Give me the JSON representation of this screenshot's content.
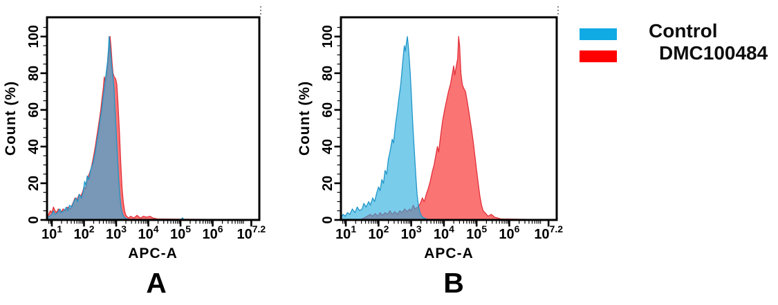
{
  "figure": {
    "ylabel": "Count (%)",
    "xlabel": "APC-A"
  },
  "legend": {
    "items": [
      {
        "label": "Control",
        "color": "#10aae4"
      },
      {
        "label": "DMC100484",
        "color": "#fe0000"
      }
    ]
  },
  "chart_data": [
    {
      "type": "area",
      "panel_label": "A",
      "title": "",
      "xlabel": "APC-A",
      "ylabel": "Count (%)",
      "x_scale": "log10",
      "grid": false,
      "legend_position": "outside-right",
      "x_domain_log": [
        0.85,
        7.45
      ],
      "y_domain": [
        0,
        110.5
      ],
      "x_ticks": [
        {
          "log": 1,
          "label": "10^1"
        },
        {
          "log": 2,
          "label": "10^2"
        },
        {
          "log": 3,
          "label": "10^3"
        },
        {
          "log": 4,
          "label": "10^4"
        },
        {
          "log": 5,
          "label": "10^5"
        },
        {
          "log": 6,
          "label": "10^6"
        },
        {
          "log": 7.2,
          "label": "10^7.2"
        }
      ],
      "y_ticks": [
        0,
        20,
        40,
        60,
        80,
        100
      ],
      "y_minor_step": 5,
      "series": [
        {
          "name": "DMC100484",
          "line_color": "#e0303a",
          "fill_color": "rgba(250,62,62,0.72)",
          "points": [
            [
              0.85,
              1.5
            ],
            [
              0.9,
              3
            ],
            [
              0.95,
              5
            ],
            [
              1.0,
              4
            ],
            [
              1.05,
              7
            ],
            [
              1.1,
              5
            ],
            [
              1.15,
              4
            ],
            [
              1.2,
              6
            ],
            [
              1.28,
              4
            ],
            [
              1.35,
              6
            ],
            [
              1.42,
              5
            ],
            [
              1.5,
              7
            ],
            [
              1.58,
              6
            ],
            [
              1.65,
              9
            ],
            [
              1.72,
              12
            ],
            [
              1.78,
              11
            ],
            [
              1.85,
              14
            ],
            [
              1.9,
              13
            ],
            [
              1.95,
              15
            ],
            [
              2.0,
              18
            ],
            [
              2.05,
              17
            ],
            [
              2.1,
              22
            ],
            [
              2.16,
              25
            ],
            [
              2.22,
              28
            ],
            [
              2.28,
              33
            ],
            [
              2.35,
              40
            ],
            [
              2.42,
              48
            ],
            [
              2.48,
              55
            ],
            [
              2.52,
              60
            ],
            [
              2.56,
              66
            ],
            [
              2.6,
              72
            ],
            [
              2.63,
              78
            ],
            [
              2.66,
              75
            ],
            [
              2.7,
              80
            ],
            [
              2.74,
              85
            ],
            [
              2.78,
              92
            ],
            [
              2.81,
              100
            ],
            [
              2.84,
              94
            ],
            [
              2.87,
              86
            ],
            [
              2.9,
              80
            ],
            [
              2.94,
              78
            ],
            [
              2.98,
              77
            ],
            [
              3.02,
              74
            ],
            [
              3.06,
              62
            ],
            [
              3.1,
              48
            ],
            [
              3.14,
              32
            ],
            [
              3.18,
              18
            ],
            [
              3.22,
              10
            ],
            [
              3.26,
              5
            ],
            [
              3.3,
              2.5
            ],
            [
              3.38,
              1
            ],
            [
              3.45,
              2
            ],
            [
              3.55,
              1
            ],
            [
              3.65,
              2.5
            ],
            [
              3.75,
              1
            ],
            [
              3.85,
              2
            ],
            [
              3.95,
              1.5
            ],
            [
              4.05,
              2
            ],
            [
              4.15,
              1
            ],
            [
              4.3,
              0.5
            ],
            [
              7.45,
              0.2
            ]
          ]
        },
        {
          "name": "Control",
          "line_color": "#1f96c8",
          "fill_color": "rgba(40,172,222,0.62)",
          "points": [
            [
              0.85,
              1
            ],
            [
              0.92,
              2
            ],
            [
              1.0,
              3
            ],
            [
              1.05,
              5
            ],
            [
              1.1,
              3
            ],
            [
              1.18,
              4
            ],
            [
              1.25,
              6
            ],
            [
              1.3,
              4
            ],
            [
              1.38,
              5
            ],
            [
              1.45,
              7
            ],
            [
              1.5,
              5
            ],
            [
              1.55,
              8
            ],
            [
              1.62,
              7
            ],
            [
              1.68,
              10
            ],
            [
              1.75,
              12
            ],
            [
              1.8,
              10
            ],
            [
              1.85,
              14
            ],
            [
              1.92,
              12
            ],
            [
              1.98,
              16
            ],
            [
              2.02,
              21
            ],
            [
              2.06,
              19
            ],
            [
              2.1,
              24
            ],
            [
              2.15,
              22
            ],
            [
              2.2,
              27
            ],
            [
              2.28,
              31
            ],
            [
              2.34,
              36
            ],
            [
              2.4,
              43
            ],
            [
              2.45,
              48
            ],
            [
              2.5,
              55
            ],
            [
              2.55,
              60
            ],
            [
              2.58,
              65
            ],
            [
              2.62,
              70
            ],
            [
              2.66,
              76
            ],
            [
              2.7,
              82
            ],
            [
              2.73,
              86
            ],
            [
              2.76,
              93
            ],
            [
              2.78,
              100
            ],
            [
              2.8,
              97
            ],
            [
              2.83,
              90
            ],
            [
              2.86,
              84
            ],
            [
              2.9,
              78
            ],
            [
              2.93,
              72
            ],
            [
              2.96,
              62
            ],
            [
              3.0,
              48
            ],
            [
              3.04,
              34
            ],
            [
              3.08,
              22
            ],
            [
              3.12,
              12
            ],
            [
              3.16,
              6
            ],
            [
              3.2,
              3
            ],
            [
              3.25,
              1.5
            ],
            [
              3.3,
              0.8
            ],
            [
              3.4,
              0.3
            ],
            [
              5.02,
              0.2
            ],
            [
              5.06,
              1.2
            ],
            [
              5.1,
              0.2
            ],
            [
              7.45,
              0.1
            ]
          ]
        }
      ]
    },
    {
      "type": "area",
      "panel_label": "B",
      "title": "",
      "xlabel": "APC-A",
      "ylabel": "Count (%)",
      "x_scale": "log10",
      "grid": false,
      "legend_position": "outside-right",
      "x_domain_log": [
        0.85,
        7.45
      ],
      "y_domain": [
        0,
        110.5
      ],
      "x_ticks": [
        {
          "log": 1,
          "label": "10^1"
        },
        {
          "log": 2,
          "label": "10^2"
        },
        {
          "log": 3,
          "label": "10^3"
        },
        {
          "log": 4,
          "label": "10^4"
        },
        {
          "log": 5,
          "label": "10^5"
        },
        {
          "log": 6,
          "label": "10^6"
        },
        {
          "log": 7.2,
          "label": "10^7.2"
        }
      ],
      "y_ticks": [
        0,
        20,
        40,
        60,
        80,
        100
      ],
      "y_minor_step": 5,
      "series": [
        {
          "name": "DMC100484",
          "line_color": "#e0303a",
          "fill_color": "rgba(250,62,62,0.72)",
          "points": [
            [
              1.45,
              0.3
            ],
            [
              1.55,
              1
            ],
            [
              1.65,
              2
            ],
            [
              1.75,
              3
            ],
            [
              1.82,
              2
            ],
            [
              1.9,
              3.5
            ],
            [
              1.98,
              2
            ],
            [
              2.05,
              4
            ],
            [
              2.12,
              2.5
            ],
            [
              2.2,
              4
            ],
            [
              2.28,
              3
            ],
            [
              2.35,
              5
            ],
            [
              2.42,
              3
            ],
            [
              2.5,
              4.5
            ],
            [
              2.58,
              3
            ],
            [
              2.65,
              5
            ],
            [
              2.72,
              4
            ],
            [
              2.8,
              6
            ],
            [
              2.88,
              4.5
            ],
            [
              2.95,
              6
            ],
            [
              3.0,
              5
            ],
            [
              3.06,
              8
            ],
            [
              3.12,
              6
            ],
            [
              3.2,
              7
            ],
            [
              3.28,
              9
            ],
            [
              3.34,
              12
            ],
            [
              3.4,
              10
            ],
            [
              3.46,
              14
            ],
            [
              3.52,
              17
            ],
            [
              3.58,
              21
            ],
            [
              3.64,
              26
            ],
            [
              3.7,
              30
            ],
            [
              3.76,
              36
            ],
            [
              3.8,
              40
            ],
            [
              3.84,
              37
            ],
            [
              3.9,
              46
            ],
            [
              3.96,
              54
            ],
            [
              4.02,
              60
            ],
            [
              4.08,
              65
            ],
            [
              4.14,
              70
            ],
            [
              4.2,
              74
            ],
            [
              4.26,
              80
            ],
            [
              4.3,
              84
            ],
            [
              4.33,
              79
            ],
            [
              4.38,
              84
            ],
            [
              4.42,
              88
            ],
            [
              4.45,
              100
            ],
            [
              4.48,
              95
            ],
            [
              4.52,
              80
            ],
            [
              4.56,
              74
            ],
            [
              4.6,
              72
            ],
            [
              4.66,
              70
            ],
            [
              4.72,
              64
            ],
            [
              4.78,
              57
            ],
            [
              4.84,
              50
            ],
            [
              4.9,
              42
            ],
            [
              4.96,
              33
            ],
            [
              5.0,
              27
            ],
            [
              5.05,
              20
            ],
            [
              5.1,
              13
            ],
            [
              5.15,
              8
            ],
            [
              5.2,
              5
            ],
            [
              5.28,
              3.5
            ],
            [
              5.35,
              2
            ],
            [
              5.45,
              3
            ],
            [
              5.55,
              1.5
            ],
            [
              5.65,
              1
            ],
            [
              5.75,
              0.5
            ],
            [
              7.45,
              0.1
            ]
          ]
        },
        {
          "name": "Control",
          "line_color": "#1f96c8",
          "fill_color": "rgba(40,172,222,0.62)",
          "points": [
            [
              0.85,
              1.5
            ],
            [
              0.92,
              3
            ],
            [
              0.98,
              2
            ],
            [
              1.05,
              4
            ],
            [
              1.12,
              3
            ],
            [
              1.2,
              6
            ],
            [
              1.28,
              4
            ],
            [
              1.35,
              7
            ],
            [
              1.42,
              5
            ],
            [
              1.5,
              6
            ],
            [
              1.55,
              9
            ],
            [
              1.62,
              7
            ],
            [
              1.7,
              10
            ],
            [
              1.75,
              8
            ],
            [
              1.82,
              12
            ],
            [
              1.88,
              10
            ],
            [
              1.95,
              15
            ],
            [
              2.0,
              18
            ],
            [
              2.05,
              16
            ],
            [
              2.1,
              22
            ],
            [
              2.15,
              20
            ],
            [
              2.2,
              27
            ],
            [
              2.25,
              25
            ],
            [
              2.3,
              33
            ],
            [
              2.36,
              38
            ],
            [
              2.42,
              44
            ],
            [
              2.46,
              42
            ],
            [
              2.52,
              52
            ],
            [
              2.58,
              60
            ],
            [
              2.62,
              66
            ],
            [
              2.68,
              74
            ],
            [
              2.72,
              82
            ],
            [
              2.76,
              90
            ],
            [
              2.79,
              95
            ],
            [
              2.82,
              92
            ],
            [
              2.85,
              96
            ],
            [
              2.88,
              100
            ],
            [
              2.91,
              95
            ],
            [
              2.94,
              88
            ],
            [
              2.97,
              80
            ],
            [
              3.0,
              70
            ],
            [
              3.03,
              58
            ],
            [
              3.06,
              48
            ],
            [
              3.1,
              36
            ],
            [
              3.14,
              24
            ],
            [
              3.18,
              14
            ],
            [
              3.22,
              8
            ],
            [
              3.27,
              4
            ],
            [
              3.32,
              2
            ],
            [
              3.4,
              1
            ],
            [
              3.5,
              0.3
            ],
            [
              7.45,
              0.1
            ]
          ]
        }
      ]
    }
  ]
}
